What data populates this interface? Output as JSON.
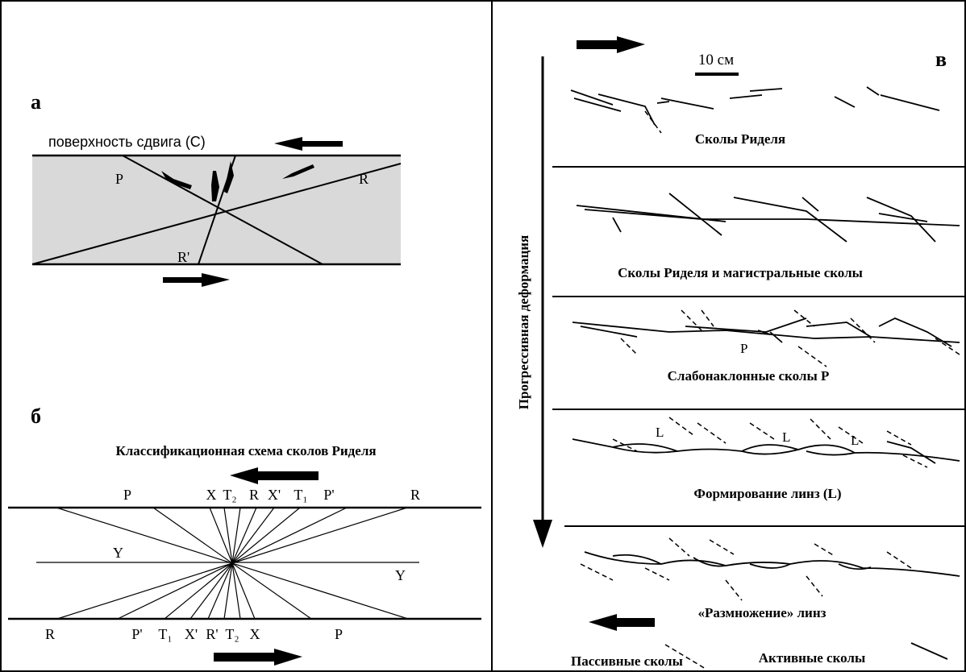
{
  "panel_a": {
    "label": "а",
    "surface": "поверхность сдвига (C)",
    "p": "P",
    "r": "R",
    "r_prime": "R'"
  },
  "panel_b": {
    "label": "б",
    "title": "Классификационная схема сколов Риделя",
    "top": [
      "P",
      "X",
      "T₂",
      "R",
      "X'",
      "T₁",
      "P'",
      "R"
    ],
    "y_left": "Y",
    "y_right": "Y",
    "bottom": [
      "R",
      "P'",
      "T₁",
      "X'",
      "R'",
      "T₂",
      "X",
      "P"
    ]
  },
  "panel_v": {
    "label": "в",
    "scale": "10 см",
    "axis": "Прогрессивная деформация",
    "stages": [
      "Сколы Риделя",
      "Сколы Риделя и магистральные сколы",
      "Слабонаклонные сколы P",
      "Формирование линз (L)",
      "«Размножение» линз"
    ],
    "p": "P",
    "lenses": [
      "L",
      "L",
      "L"
    ],
    "legend": {
      "passive": "Пассивные сколы",
      "active": "Активные сколы"
    }
  }
}
